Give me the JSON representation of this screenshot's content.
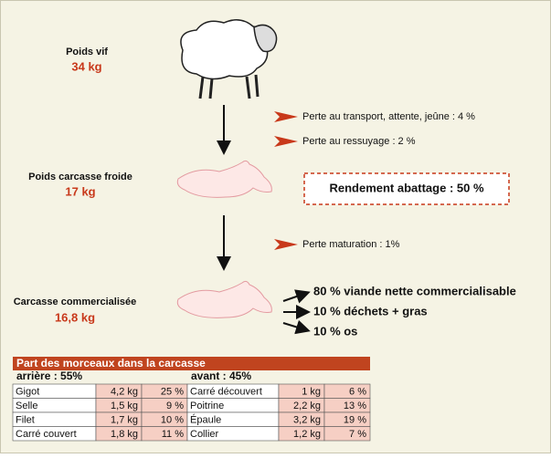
{
  "steps": [
    {
      "label": "Poids vif",
      "value": "34 kg"
    },
    {
      "label": "Poids carcasse froide",
      "value": "17 kg"
    },
    {
      "label": "Carcasse commercialisée",
      "value": "16,8 kg"
    }
  ],
  "losses": [
    "Perte au transport, attente, jeûne : 4 %",
    "Perte au ressuyage : 2 %",
    "Perte maturation : 1%"
  ],
  "yield": "Rendement abattage : 50 %",
  "breakdown": [
    "80 % viande nette commercialisable",
    "10 % déchets + gras",
    "10 % os"
  ],
  "table": {
    "title": "Part des morceaux dans la carcasse",
    "groups": [
      {
        "heading": "arrière : 55%",
        "rows": [
          [
            "Gigot",
            "4,2 kg",
            "25 %"
          ],
          [
            "Selle",
            "1,5 kg",
            "9 %"
          ],
          [
            "Filet",
            "1,7 kg",
            "10 %"
          ],
          [
            "Carré couvert",
            "1,8 kg",
            "11 %"
          ]
        ]
      },
      {
        "heading": "avant : 45%",
        "rows": [
          [
            "Carré découvert",
            "1 kg",
            "6 %"
          ],
          [
            "Poitrine",
            "2,2 kg",
            "13 %"
          ],
          [
            "Épaule",
            "3,2 kg",
            "19 %"
          ],
          [
            "Collier",
            "1,2 kg",
            "7 %"
          ]
        ]
      }
    ]
  }
}
